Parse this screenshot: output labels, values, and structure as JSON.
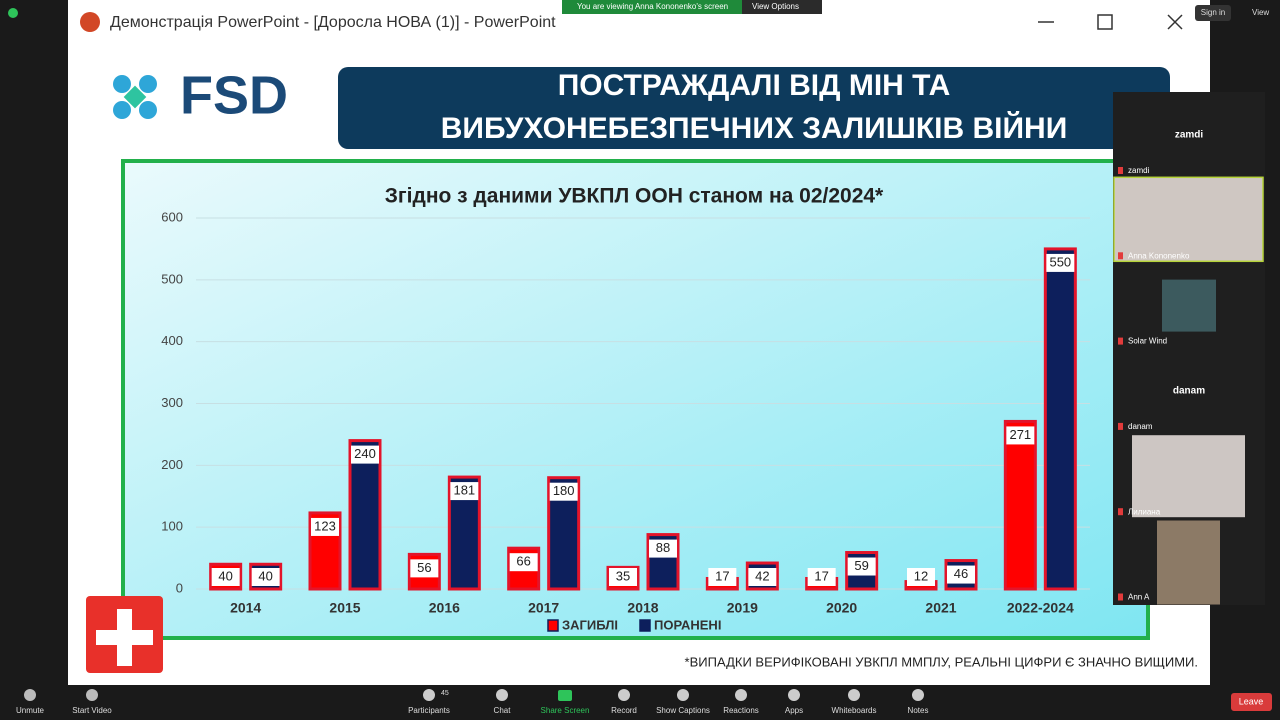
{
  "window": {
    "title": "Демонстрація PowerPoint - [Доросла НОВА (1)] - PowerPoint"
  },
  "banner": {
    "text": "You are viewing Anna Kononenko's screen",
    "button": "View Options"
  },
  "top_right": [
    "Sign in",
    "View"
  ],
  "slide": {
    "logo": "FSD",
    "title_lines": [
      "ПОСТРАЖДАЛІ ВІД МІН ТА",
      "ВИБУХОНЕБЕЗПЕЧНИХ ЗАЛИШКІВ ВІЙНИ"
    ],
    "chart": {
      "type": "bar",
      "title": "Згідно з даними УВКПЛ ООН станом на 02/2024*",
      "categories": [
        "2014",
        "2015",
        "2016",
        "2017",
        "2018",
        "2019",
        "2020",
        "2021",
        "2022-2024"
      ],
      "series": [
        {
          "name": "ЗАГИБЛІ",
          "color": "#ff0000",
          "values": [
            40,
            123,
            56,
            66,
            35,
            17,
            17,
            12,
            271
          ]
        },
        {
          "name": "ПОРАНЕНІ",
          "color": "#0d1f5c",
          "values": [
            40,
            240,
            181,
            180,
            88,
            42,
            59,
            46,
            550
          ]
        }
      ],
      "ylim": [
        0,
        600
      ],
      "yticks": [
        0,
        100,
        200,
        300,
        400,
        500,
        600
      ],
      "grid": true
    },
    "footnote": "*ВИПАДКИ ВЕРИФІКОВАНІ УВКПЛ ММПЛУ, РЕАЛЬНІ ЦИФРИ Є ЗНАЧНО ВИЩИМИ."
  },
  "participants": [
    {
      "name": "zamdi",
      "center_name": "zamdi"
    },
    {
      "name": "Anna Kononenko"
    },
    {
      "name": "Solar Wind"
    },
    {
      "name": "danam",
      "center_name": "danam"
    },
    {
      "name": "Лилиана"
    },
    {
      "name": "Ann A"
    }
  ],
  "toolbar": {
    "items": [
      "Unmute",
      "Start Video",
      "Participants",
      "Chat",
      "Share Screen",
      "Record",
      "Show Captions",
      "Reactions",
      "Apps",
      "Whiteboards",
      "Notes"
    ],
    "participants_count": 45,
    "leave": "Leave"
  }
}
